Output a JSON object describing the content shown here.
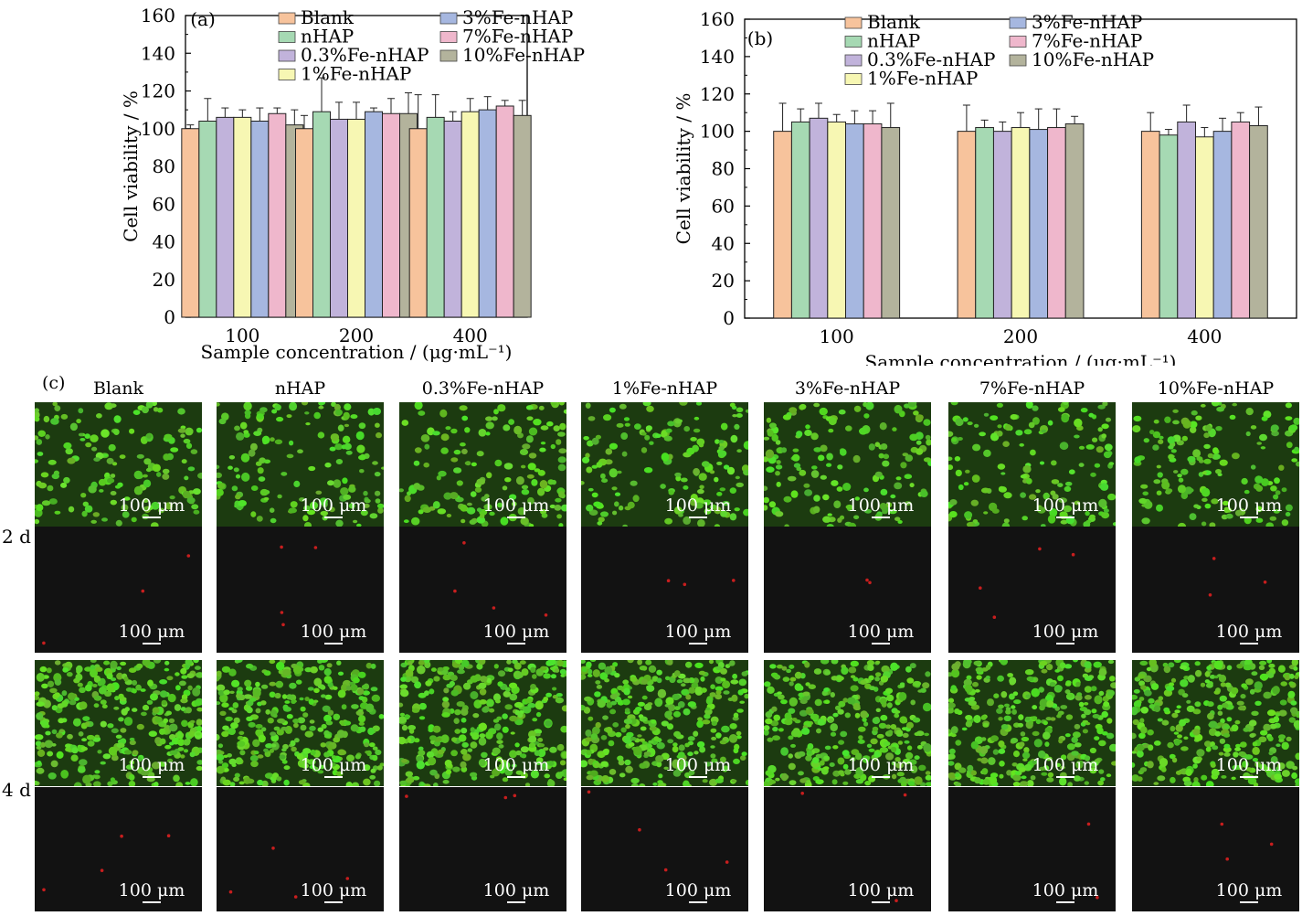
{
  "chart_data": [
    {
      "type": "bar",
      "panel": "(a)",
      "categories": [
        "100",
        "200",
        "400"
      ],
      "xlabel": "Sample concentration / (μg·mL⁻¹)",
      "ylabel": "Cell viability / %",
      "ylim": [
        0,
        160
      ],
      "yticks": [
        "0",
        "20",
        "40",
        "60",
        "80",
        "100",
        "120",
        "140",
        "160"
      ],
      "legend": "top-left, two columns",
      "series": [
        {
          "name": "Blank",
          "values": [
            100,
            100,
            100
          ],
          "errors": [
            2,
            7,
            18
          ]
        },
        {
          "name": "nHAP",
          "values": [
            104,
            109,
            106
          ],
          "errors": [
            12,
            18,
            12
          ]
        },
        {
          "name": "0.3%Fe-nHAP",
          "values": [
            106,
            105,
            104
          ],
          "errors": [
            5,
            9,
            5
          ]
        },
        {
          "name": "1%Fe-nHAP",
          "values": [
            106,
            105,
            109
          ],
          "errors": [
            4,
            9,
            7
          ]
        },
        {
          "name": "3%Fe-nHAP",
          "values": [
            104,
            109,
            110
          ],
          "errors": [
            7,
            2,
            7
          ]
        },
        {
          "name": "7%Fe-nHAP",
          "values": [
            108,
            108,
            112
          ],
          "errors": [
            3,
            8,
            3
          ]
        },
        {
          "name": "10%Fe-nHAP",
          "values": [
            102,
            108,
            107
          ],
          "errors": [
            8,
            11,
            8
          ]
        }
      ]
    },
    {
      "type": "bar",
      "panel": "(b)",
      "categories": [
        "100",
        "200",
        "400"
      ],
      "xlabel": "Sample concentration / (μg·mL⁻¹)",
      "ylabel": "Cell viability / %",
      "ylim": [
        0,
        160
      ],
      "yticks": [
        "0",
        "20",
        "40",
        "60",
        "80",
        "100",
        "120",
        "140",
        "160"
      ],
      "legend": "top-right, two columns",
      "series": [
        {
          "name": "Blank",
          "values": [
            100,
            100,
            100
          ],
          "errors": [
            15,
            14,
            10
          ]
        },
        {
          "name": "nHAP",
          "values": [
            105,
            102,
            98
          ],
          "errors": [
            7,
            4,
            3
          ]
        },
        {
          "name": "0.3%Fe-nHAP",
          "values": [
            107,
            100,
            105
          ],
          "errors": [
            8,
            5,
            9
          ]
        },
        {
          "name": "1%Fe-nHAP",
          "values": [
            105,
            102,
            97
          ],
          "errors": [
            4,
            8,
            5
          ]
        },
        {
          "name": "3%Fe-nHAP",
          "values": [
            104,
            101,
            100
          ],
          "errors": [
            7,
            11,
            7
          ]
        },
        {
          "name": "7%Fe-nHAP",
          "values": [
            104,
            102,
            105
          ],
          "errors": [
            7,
            10,
            5
          ]
        },
        {
          "name": "10%Fe-nHAP",
          "values": [
            102,
            104,
            103
          ],
          "errors": [
            13,
            4,
            10
          ]
        }
      ]
    }
  ],
  "colors": {
    "Blank": "#f7c39c",
    "nHAP": "#a6d9b3",
    "0.3%Fe-nHAP": "#c1b3db",
    "1%Fe-nHAP": "#f7f7b3",
    "3%Fe-nHAP": "#a6b7e0",
    "7%Fe-nHAP": "#efb7cc",
    "10%Fe-nHAP": "#b3b39c"
  },
  "micrographs": {
    "panel": "(c)",
    "columns": [
      "Blank",
      "nHAP",
      "0.3%Fe-nHAP",
      "1%Fe-nHAP",
      "3%Fe-nHAP",
      "7%Fe-nHAP",
      "10%Fe-nHAP"
    ],
    "rows": [
      "2 d",
      "4 d"
    ],
    "scale_bar": "100 μm",
    "live_color": "#5dc82a",
    "dead_color": "#c81e1e",
    "density_2d": "sparse",
    "density_4d": "dense"
  }
}
